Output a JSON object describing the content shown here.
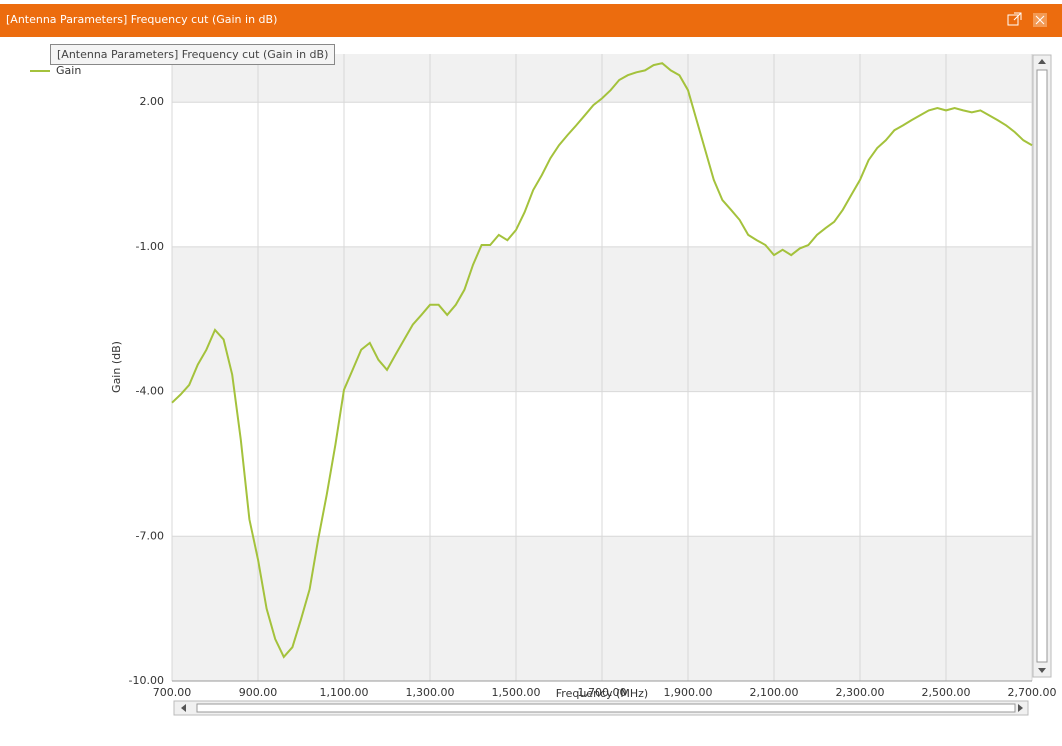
{
  "window_title": "[Antenna Parameters] Frequency cut (Gain in dB)",
  "tooltip": "[Antenna Parameters] Frequency cut (Gain in dB)",
  "chart_data": {
    "type": "line",
    "x_label": "Frequency (MHz)",
    "y_label": "Gain (dB)",
    "x": [
      700,
      720,
      740,
      760,
      780,
      800,
      820,
      840,
      860,
      880,
      900,
      920,
      940,
      960,
      980,
      1000,
      1020,
      1040,
      1060,
      1080,
      1100,
      1120,
      1140,
      1160,
      1180,
      1200,
      1220,
      1240,
      1260,
      1280,
      1300,
      1320,
      1340,
      1360,
      1380,
      1400,
      1420,
      1440,
      1460,
      1480,
      1500,
      1520,
      1540,
      1560,
      1580,
      1600,
      1620,
      1640,
      1660,
      1680,
      1700,
      1720,
      1740,
      1760,
      1780,
      1800,
      1820,
      1840,
      1860,
      1880,
      1900,
      1920,
      1940,
      1960,
      1980,
      2000,
      2020,
      2040,
      2060,
      2080,
      2100,
      2120,
      2140,
      2160,
      2180,
      2200,
      2220,
      2240,
      2260,
      2280,
      2300,
      2320,
      2340,
      2360,
      2380,
      2400,
      2420,
      2440,
      2460,
      2480,
      2500,
      2520,
      2540,
      2560,
      2580,
      2600,
      2620,
      2640,
      2660,
      2680,
      2700
    ],
    "series": [
      {
        "name": "Gain",
        "color": "#a4c23c",
        "values": [
          -4.23,
          -4.06,
          -3.86,
          -3.44,
          -3.13,
          -2.72,
          -2.92,
          -3.65,
          -5.0,
          -6.65,
          -7.48,
          -8.5,
          -9.13,
          -9.5,
          -9.3,
          -8.72,
          -8.1,
          -7.06,
          -6.13,
          -5.1,
          -3.96,
          -3.55,
          -3.13,
          -2.99,
          -3.34,
          -3.55,
          -3.23,
          -2.92,
          -2.61,
          -2.41,
          -2.2,
          -2.2,
          -2.41,
          -2.2,
          -1.89,
          -1.37,
          -0.96,
          -0.96,
          -0.75,
          -0.86,
          -0.65,
          -0.28,
          0.18,
          0.49,
          0.84,
          1.11,
          1.32,
          1.52,
          1.73,
          1.94,
          2.08,
          2.25,
          2.46,
          2.56,
          2.62,
          2.66,
          2.77,
          2.81,
          2.66,
          2.56,
          2.25,
          1.63,
          1.01,
          0.39,
          -0.03,
          -0.23,
          -0.44,
          -0.75,
          -0.86,
          -0.96,
          -1.17,
          -1.06,
          -1.17,
          -1.03,
          -0.96,
          -0.75,
          -0.61,
          -0.48,
          -0.23,
          0.08,
          0.39,
          0.8,
          1.05,
          1.21,
          1.42,
          1.52,
          1.63,
          1.73,
          1.83,
          1.88,
          1.83,
          1.88,
          1.83,
          1.79,
          1.83,
          1.73,
          1.63,
          1.52,
          1.38,
          1.21,
          1.11
        ]
      }
    ],
    "xlim": [
      700,
      2700
    ],
    "ylim": [
      -10,
      3
    ],
    "xticks": [
      {
        "value": 700,
        "label": "700.00"
      },
      {
        "value": 900,
        "label": "900.00"
      },
      {
        "value": 1100,
        "label": "1,100.00"
      },
      {
        "value": 1300,
        "label": "1,300.00"
      },
      {
        "value": 1500,
        "label": "1,500.00"
      },
      {
        "value": 1700,
        "label": "1,700.00"
      },
      {
        "value": 1900,
        "label": "1,900.00"
      },
      {
        "value": 2100,
        "label": "2,100.00"
      },
      {
        "value": 2300,
        "label": "2,300.00"
      },
      {
        "value": 2500,
        "label": "2,500.00"
      },
      {
        "value": 2700,
        "label": "2,700.00"
      }
    ],
    "yticks": [
      {
        "value": -10,
        "label": "-10.00"
      },
      {
        "value": -7,
        "label": "-7.00"
      },
      {
        "value": -4,
        "label": "-4.00"
      },
      {
        "value": -1,
        "label": "-1.00"
      },
      {
        "value": 2,
        "label": "2.00"
      }
    ],
    "grid": true
  }
}
